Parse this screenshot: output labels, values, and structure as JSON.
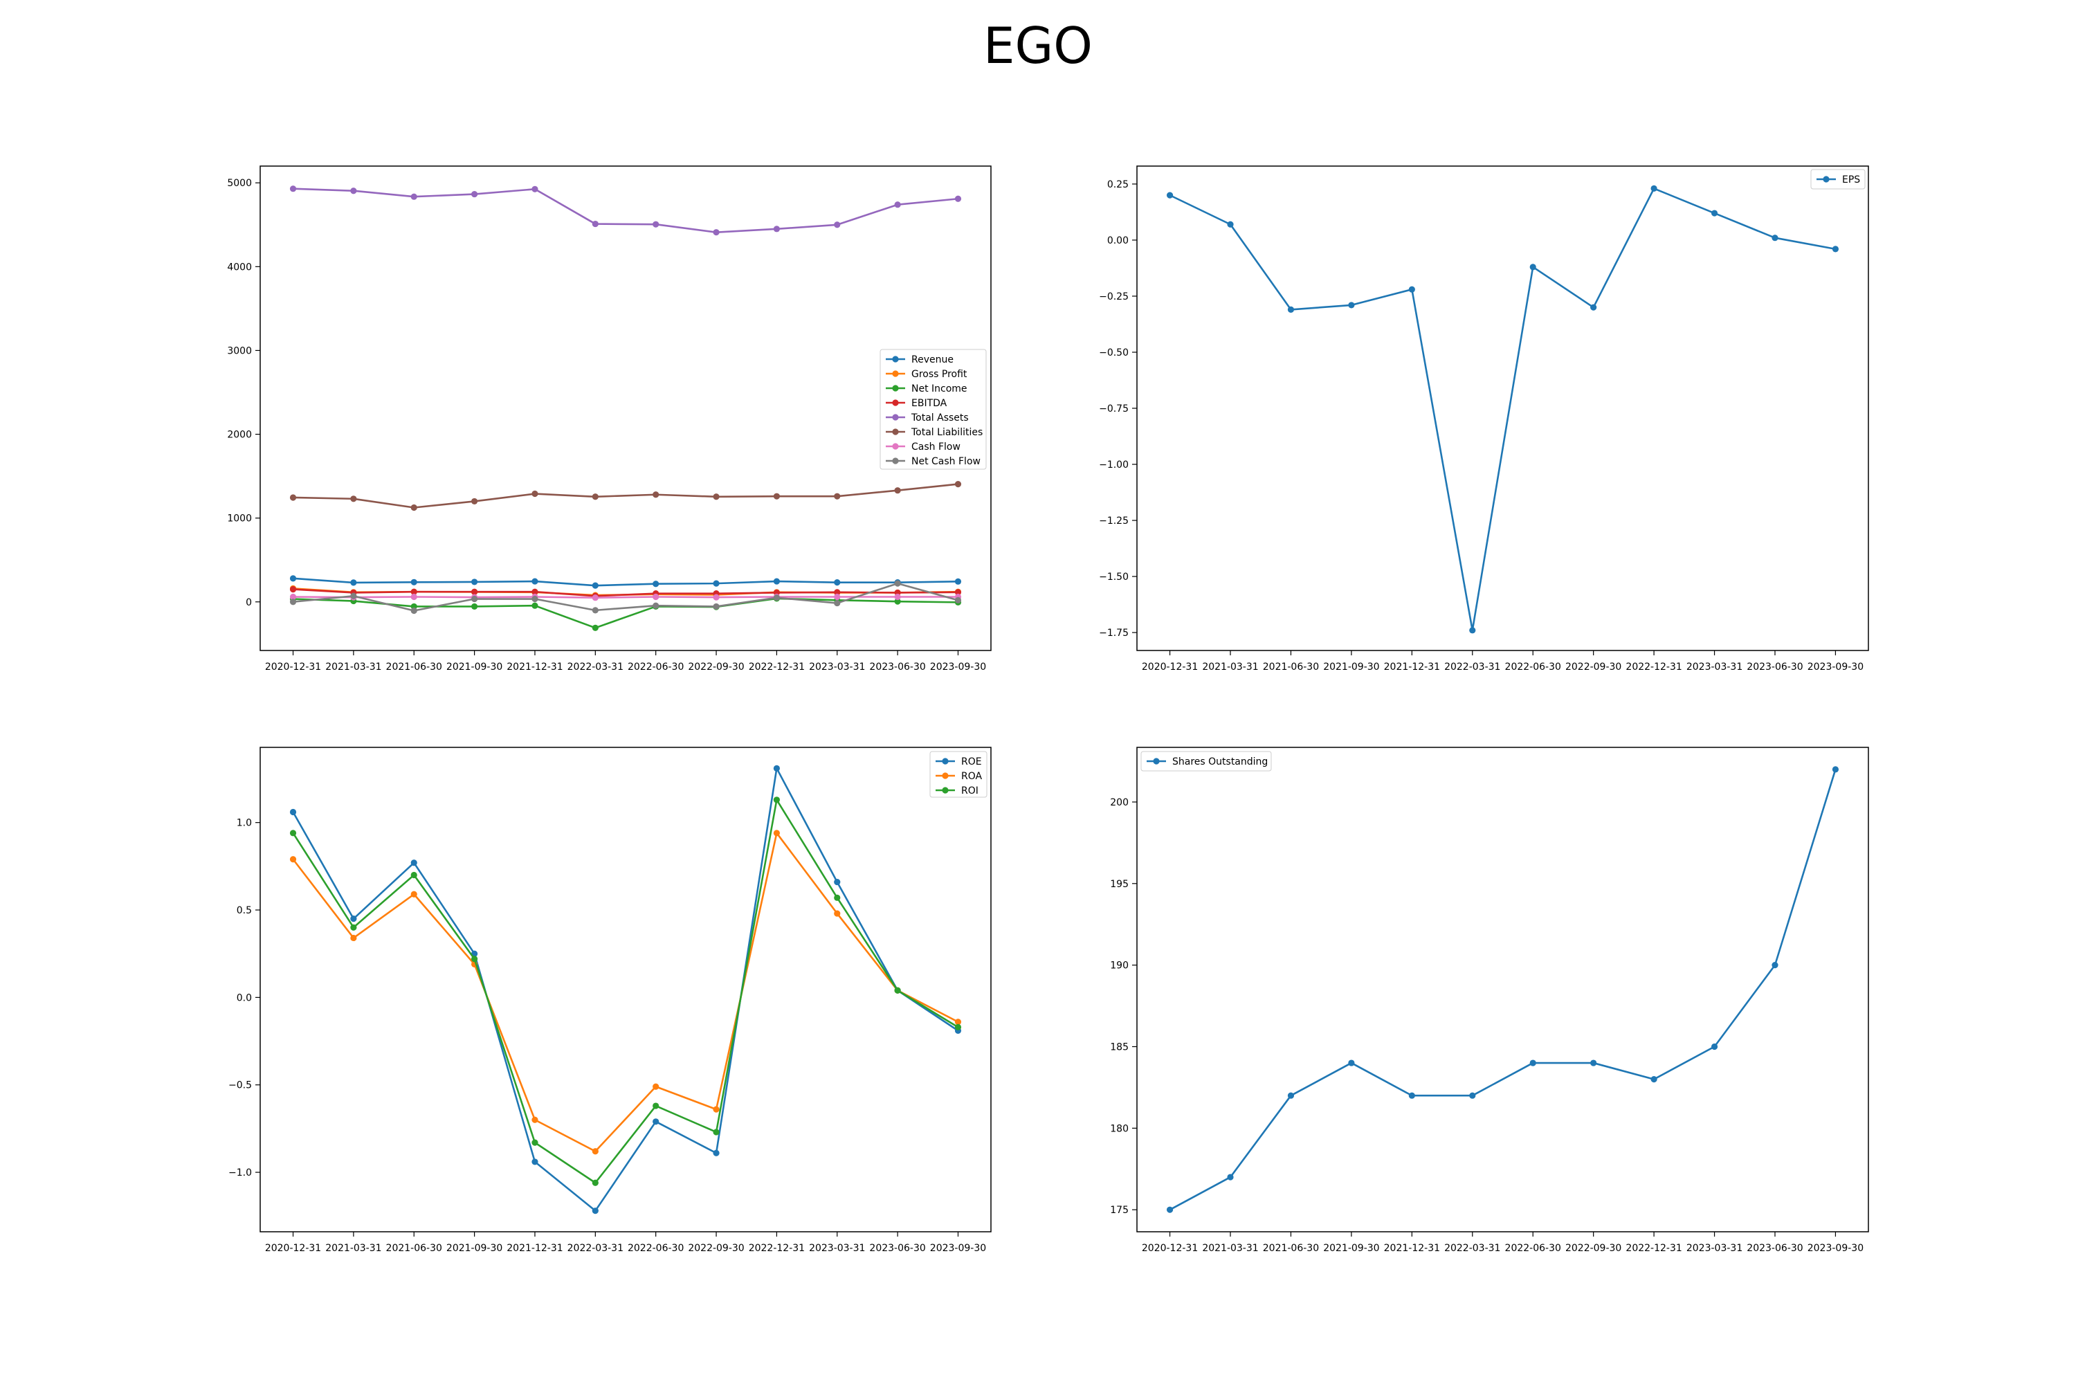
{
  "title": "EGO",
  "colors": {
    "blue": "#1f77b4",
    "orange": "#ff7f0e",
    "green": "#2ca02c",
    "red": "#d62728",
    "purple": "#9467bd",
    "brown": "#8c564b",
    "pink": "#e377c2",
    "gray": "#7f7f7f"
  },
  "chart_data": [
    {
      "type": "line",
      "x": [
        "2020-12-31",
        "2021-03-31",
        "2021-06-30",
        "2021-09-30",
        "2021-12-31",
        "2022-03-31",
        "2022-06-30",
        "2022-09-30",
        "2022-12-31",
        "2023-03-31",
        "2023-06-30",
        "2023-09-30"
      ],
      "ylim": [
        -580,
        5200
      ],
      "yticks": [
        0,
        1000,
        2000,
        3000,
        4000,
        5000
      ],
      "grid": false,
      "legend": "center-right",
      "series": [
        {
          "name": "Revenue",
          "color": "#1f77b4",
          "values": [
            280,
            230,
            235,
            238,
            245,
            195,
            215,
            220,
            245,
            232,
            232,
            243
          ]
        },
        {
          "name": "Gross Profit",
          "color": "#ff7f0e",
          "values": [
            160,
            115,
            120,
            118,
            115,
            80,
            90,
            85,
            115,
            110,
            110,
            120
          ]
        },
        {
          "name": "Net Income",
          "color": "#2ca02c",
          "values": [
            35,
            10,
            -55,
            -55,
            -45,
            -310,
            -55,
            -60,
            40,
            20,
            5,
            -5
          ]
        },
        {
          "name": "EBITDA",
          "color": "#d62728",
          "values": [
            150,
            110,
            120,
            120,
            120,
            70,
            100,
            100,
            110,
            115,
            110,
            115
          ]
        },
        {
          "name": "Total Assets",
          "color": "#9467bd",
          "values": [
            4930,
            4905,
            4835,
            4865,
            4925,
            4510,
            4505,
            4410,
            4450,
            4500,
            4740,
            4810
          ]
        },
        {
          "name": "Total Liabilities",
          "color": "#8c564b",
          "values": [
            1245,
            1230,
            1125,
            1200,
            1290,
            1255,
            1280,
            1255,
            1260,
            1260,
            1330,
            1405
          ]
        },
        {
          "name": "Cash Flow",
          "color": "#e377c2",
          "values": [
            60,
            55,
            60,
            55,
            60,
            50,
            60,
            55,
            60,
            60,
            60,
            60
          ]
        },
        {
          "name": "Net Cash Flow",
          "color": "#7f7f7f",
          "values": [
            0,
            70,
            -105,
            35,
            35,
            -100,
            -45,
            -55,
            50,
            -15,
            220,
            20
          ]
        }
      ]
    },
    {
      "type": "line",
      "x": [
        "2020-12-31",
        "2021-03-31",
        "2021-06-30",
        "2021-09-30",
        "2021-12-31",
        "2022-03-31",
        "2022-06-30",
        "2022-09-30",
        "2022-12-31",
        "2023-03-31",
        "2023-06-30",
        "2023-09-30"
      ],
      "ylim": [
        -1.83,
        0.33
      ],
      "yticks": [
        0.25,
        0.0,
        -0.25,
        -0.5,
        -0.75,
        -1.0,
        -1.25,
        -1.5,
        -1.75
      ],
      "ytick_labels": [
        "0.25",
        "0.00",
        "−0.25",
        "−0.50",
        "−0.75",
        "−1.00",
        "−1.25",
        "−1.50",
        "−1.75"
      ],
      "grid": false,
      "legend": "top-right",
      "series": [
        {
          "name": "EPS",
          "color": "#1f77b4",
          "values": [
            0.2,
            0.07,
            -0.31,
            -0.29,
            -0.22,
            -1.74,
            -0.12,
            -0.3,
            0.23,
            0.12,
            0.01,
            -0.04
          ]
        }
      ]
    },
    {
      "type": "line",
      "x": [
        "2020-12-31",
        "2021-03-31",
        "2021-06-30",
        "2021-09-30",
        "2021-12-31",
        "2022-03-31",
        "2022-06-30",
        "2022-09-30",
        "2022-12-31",
        "2023-03-31",
        "2023-06-30",
        "2023-09-30"
      ],
      "ylim": [
        -1.34,
        1.43
      ],
      "yticks": [
        1.0,
        0.5,
        0.0,
        -0.5,
        -1.0
      ],
      "ytick_labels": [
        "1.0",
        "0.5",
        "0.0",
        "−0.5",
        "−1.0"
      ],
      "grid": false,
      "legend": "top-right",
      "series": [
        {
          "name": "ROE",
          "color": "#1f77b4",
          "values": [
            1.06,
            0.45,
            0.77,
            0.25,
            -0.94,
            -1.22,
            -0.71,
            -0.89,
            1.31,
            0.66,
            0.04,
            -0.19
          ]
        },
        {
          "name": "ROA",
          "color": "#ff7f0e",
          "values": [
            0.79,
            0.34,
            0.59,
            0.19,
            -0.7,
            -0.88,
            -0.51,
            -0.64,
            0.94,
            0.48,
            0.04,
            -0.14
          ]
        },
        {
          "name": "ROI",
          "color": "#2ca02c",
          "values": [
            0.94,
            0.4,
            0.7,
            0.22,
            -0.83,
            -1.06,
            -0.62,
            -0.77,
            1.13,
            0.57,
            0.04,
            -0.17
          ]
        }
      ]
    },
    {
      "type": "line",
      "x": [
        "2020-12-31",
        "2021-03-31",
        "2021-06-30",
        "2021-09-30",
        "2021-12-31",
        "2022-03-31",
        "2022-06-30",
        "2022-09-30",
        "2022-12-31",
        "2023-03-31",
        "2023-06-30",
        "2023-09-30"
      ],
      "ylim": [
        173.65,
        203.35
      ],
      "yticks": [
        175,
        180,
        185,
        190,
        195,
        200
      ],
      "grid": false,
      "legend": "top-left",
      "series": [
        {
          "name": "Shares Outstanding",
          "color": "#1f77b4",
          "values": [
            175,
            177,
            182,
            184,
            182,
            182,
            184,
            184,
            183,
            185,
            190,
            202
          ]
        }
      ]
    }
  ]
}
